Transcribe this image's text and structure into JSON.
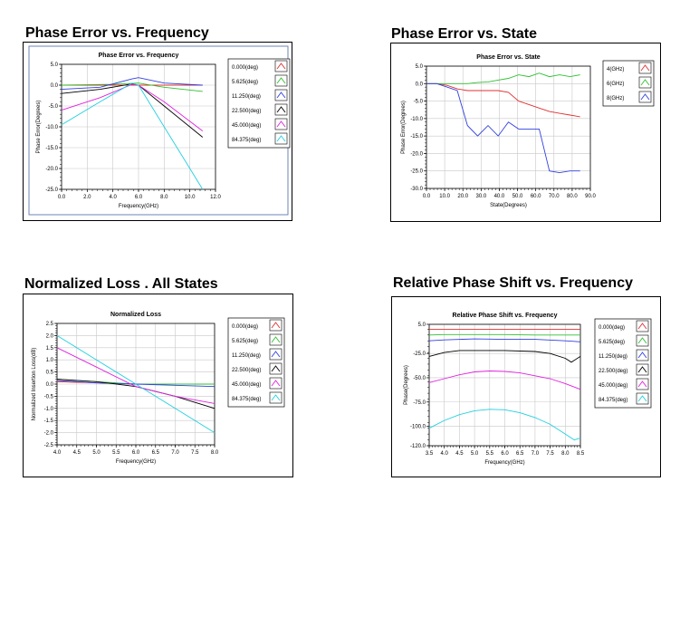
{
  "panels": [
    {
      "heading": "Phase Error vs. Frequency"
    },
    {
      "heading": "Phase Error vs. State"
    },
    {
      "heading": "Normalized Loss . All States"
    },
    {
      "heading": "Relative Phase Shift vs. Frequency"
    }
  ],
  "chart_data": [
    {
      "type": "line",
      "title": "Phase Error vs. Frequency",
      "xlabel": "Frequency(GHz)",
      "ylabel": "Phase Error(Degrees)",
      "xlim": [
        0,
        12
      ],
      "ylim": [
        -25,
        5
      ],
      "xticks": [
        0,
        2,
        4,
        6,
        8,
        10,
        12
      ],
      "yticks": [
        5,
        0,
        -5,
        -10,
        -15,
        -20,
        -25
      ],
      "tick_decimals": 1,
      "grid": true,
      "legend": "right",
      "series": [
        {
          "name": "0.000(deg)",
          "color": "#e03030",
          "x": [
            0,
            6,
            11
          ],
          "y": [
            0,
            0,
            0
          ]
        },
        {
          "name": "5.625(deg)",
          "color": "#30c030",
          "x": [
            0,
            4,
            6,
            8,
            11
          ],
          "y": [
            0,
            0.2,
            0.5,
            -0.5,
            -1.5
          ]
        },
        {
          "name": "11.250(deg)",
          "color": "#3040e0",
          "x": [
            0,
            3,
            5.5,
            6,
            8,
            11
          ],
          "y": [
            -1,
            -0.5,
            1.5,
            1.8,
            0.5,
            0
          ]
        },
        {
          "name": "22.500(deg)",
          "color": "#000000",
          "x": [
            0,
            3,
            5.5,
            6,
            8,
            11
          ],
          "y": [
            -2,
            -1,
            0.3,
            0,
            -5,
            -12.5
          ]
        },
        {
          "name": "45.000(deg)",
          "color": "#e020e0",
          "x": [
            0,
            3,
            5.5,
            6,
            8,
            11
          ],
          "y": [
            -6,
            -3,
            0.2,
            0,
            -4,
            -11
          ]
        },
        {
          "name": "84.375(deg)",
          "color": "#20d0e0",
          "x": [
            0,
            3,
            5.5,
            6,
            8,
            10,
            11
          ],
          "y": [
            -9.5,
            -4,
            0.5,
            0,
            -10,
            -20,
            -25
          ]
        }
      ]
    },
    {
      "type": "line",
      "title": "Phase Error vs. State",
      "xlabel": "State(Degrees)",
      "ylabel": "Phase Error(Degrees)",
      "xlim": [
        0,
        90
      ],
      "ylim": [
        -30,
        5
      ],
      "xticks": [
        0,
        10,
        20,
        30,
        40,
        50,
        60,
        70,
        80,
        90
      ],
      "yticks": [
        5,
        0,
        -5,
        -10,
        -15,
        -20,
        -25,
        -30
      ],
      "tick_decimals": 1,
      "grid": true,
      "legend": "right",
      "series": [
        {
          "name": "4(GHz)",
          "color": "#e03030",
          "x": [
            0,
            5.6,
            11.3,
            16.9,
            22.5,
            28.1,
            33.8,
            39.4,
            45,
            50.6,
            56.3,
            61.9,
            67.5,
            73.1,
            78.8,
            84.4
          ],
          "y": [
            0,
            0,
            -0.5,
            -1.5,
            -2,
            -2,
            -2,
            -2,
            -2.5,
            -5,
            -6,
            -7,
            -8,
            -8.5,
            -9,
            -9.5
          ]
        },
        {
          "name": "6(GHz)",
          "color": "#30c030",
          "x": [
            0,
            5.6,
            11.3,
            16.9,
            22.5,
            28.1,
            33.8,
            39.4,
            45,
            50.6,
            56.3,
            61.9,
            67.5,
            73.1,
            78.8,
            84.4
          ],
          "y": [
            0,
            0,
            0,
            0,
            0,
            0.3,
            0.5,
            1,
            1.5,
            2.5,
            2,
            3,
            2,
            2.5,
            2,
            2.5
          ]
        },
        {
          "name": "8(GHz)",
          "color": "#3040e0",
          "x": [
            0,
            5.6,
            11.3,
            16.9,
            22.5,
            28.1,
            33.8,
            39.4,
            45,
            50.6,
            56.3,
            61.9,
            67.5,
            73.1,
            78.8,
            84.4
          ],
          "y": [
            0,
            0,
            -1,
            -2,
            -12,
            -15,
            -12,
            -15,
            -11,
            -13,
            -13,
            -13,
            -25,
            -25.5,
            -25,
            -25
          ]
        }
      ]
    },
    {
      "type": "line",
      "title": "Normalized Loss",
      "xlabel": "Frequency(GHz)",
      "ylabel": "Normalized Insertion Loss(dB)",
      "xlim": [
        4,
        8
      ],
      "ylim": [
        -2.5,
        2.5
      ],
      "xticks": [
        4,
        4.5,
        5,
        5.5,
        6,
        6.5,
        7,
        7.5,
        8
      ],
      "yticks": [
        2.5,
        2,
        1.5,
        1,
        0.5,
        0,
        -0.5,
        -1,
        -1.5,
        -2,
        -2.5
      ],
      "tick_decimals": 1,
      "grid": true,
      "legend": "right",
      "series": [
        {
          "name": "0.000(deg)",
          "color": "#e03030",
          "x": [
            4,
            5,
            6,
            7,
            8
          ],
          "y": [
            0.1,
            0.05,
            0,
            0,
            0
          ]
        },
        {
          "name": "5.625(deg)",
          "color": "#30c030",
          "x": [
            4,
            5,
            6,
            7,
            8
          ],
          "y": [
            0.2,
            0.1,
            0,
            0,
            0
          ]
        },
        {
          "name": "11.250(deg)",
          "color": "#3040e0",
          "x": [
            4,
            5,
            6,
            7,
            8
          ],
          "y": [
            0.15,
            0.05,
            0,
            -0.05,
            -0.1
          ]
        },
        {
          "name": "22.500(deg)",
          "color": "#000000",
          "x": [
            4,
            5,
            6,
            7,
            8
          ],
          "y": [
            0.2,
            0.1,
            -0.1,
            -0.5,
            -1.0
          ]
        },
        {
          "name": "45.000(deg)",
          "color": "#e020e0",
          "x": [
            4,
            5,
            6,
            7,
            8
          ],
          "y": [
            1.5,
            0.7,
            -0.1,
            -0.5,
            -0.8
          ]
        },
        {
          "name": "84.375(deg)",
          "color": "#20d0e0",
          "x": [
            4,
            5,
            6,
            7,
            8
          ],
          "y": [
            2.0,
            1.0,
            0,
            -1.0,
            -2.0
          ]
        }
      ]
    },
    {
      "type": "line",
      "title": "Relative Phase Shift vs. Frequency",
      "xlabel": "Frequency(GHz)",
      "ylabel": "Phase(Degrees)",
      "xlim": [
        3.5,
        8.5
      ],
      "ylim": [
        -120,
        5
      ],
      "xticks": [
        3.5,
        4,
        4.5,
        5,
        5.5,
        6,
        6.5,
        7,
        7.5,
        8,
        8.5
      ],
      "yticks": [
        5,
        -25,
        -50,
        -75,
        -100,
        -120
      ],
      "tick_decimals": 1,
      "grid": true,
      "legend": "right",
      "series": [
        {
          "name": "0.000(deg)",
          "color": "#e03030",
          "x": [
            3.5,
            8.5
          ],
          "y": [
            0,
            0
          ]
        },
        {
          "name": "5.625(deg)",
          "color": "#30c030",
          "x": [
            3.5,
            4,
            5,
            6,
            7,
            8,
            8.5
          ],
          "y": [
            -6,
            -5.5,
            -5.5,
            -5.5,
            -6,
            -6,
            -6
          ]
        },
        {
          "name": "11.250(deg)",
          "color": "#3040e0",
          "x": [
            3.5,
            4,
            5,
            6,
            7,
            8,
            8.5
          ],
          "y": [
            -12,
            -11,
            -10,
            -10.5,
            -10.5,
            -12,
            -13
          ]
        },
        {
          "name": "22.500(deg)",
          "color": "#000000",
          "x": [
            3.5,
            4,
            4.5,
            5,
            6,
            7,
            7.5,
            8,
            8.2,
            8.5
          ],
          "y": [
            -28,
            -24,
            -22,
            -22,
            -22,
            -23,
            -25,
            -30,
            -34,
            -28
          ]
        },
        {
          "name": "45.000(deg)",
          "color": "#e020e0",
          "x": [
            3.5,
            4,
            4.5,
            5,
            5.5,
            6,
            6.5,
            7,
            7.5,
            8,
            8.5
          ],
          "y": [
            -55,
            -51,
            -47,
            -44,
            -43,
            -43.5,
            -45,
            -48,
            -51,
            -56,
            -62
          ]
        },
        {
          "name": "84.375(deg)",
          "color": "#20d0e0",
          "x": [
            3.5,
            4,
            4.5,
            5,
            5.5,
            6,
            6.5,
            7,
            7.5,
            8,
            8.3,
            8.5
          ],
          "y": [
            -102,
            -94,
            -88,
            -84,
            -82.5,
            -83,
            -86,
            -91,
            -98,
            -108,
            -114,
            -112
          ]
        }
      ]
    }
  ]
}
